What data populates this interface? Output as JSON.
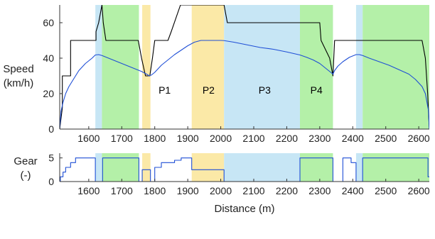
{
  "chart_data": [
    {
      "type": "line",
      "ylabel_lines": [
        "Speed",
        "(km/h)"
      ],
      "xlabel": "",
      "xlim": [
        1512,
        2632
      ],
      "ylim": [
        0,
        70
      ],
      "x_ticks": [
        1600,
        1700,
        1800,
        1900,
        2000,
        2100,
        2200,
        2300,
        2400,
        2500,
        2600
      ],
      "y_ticks": [
        0,
        20,
        40,
        60
      ],
      "grid": false,
      "legend": "none",
      "phase_bands": [
        {
          "x0": 1620,
          "x1": 1640,
          "color": "#c7e6f5"
        },
        {
          "x0": 1640,
          "x1": 1752,
          "color": "#b4f0a8"
        },
        {
          "x0": 1762,
          "x1": 1787,
          "color": "#fbe9a7"
        },
        {
          "x0": 1912,
          "x1": 2010,
          "color": "#fbe9a7"
        },
        {
          "x0": 2010,
          "x1": 2240,
          "color": "#c7e6f5"
        },
        {
          "x0": 2240,
          "x1": 2340,
          "color": "#b4f0a8"
        },
        {
          "x0": 2410,
          "x1": 2430,
          "color": "#c7e6f5"
        },
        {
          "x0": 2430,
          "x1": 2632,
          "color": "#b4f0a8"
        }
      ],
      "annotations": [
        {
          "text": "P1",
          "x": 1830,
          "y": 22
        },
        {
          "text": "P2",
          "x": 1963,
          "y": 22
        },
        {
          "text": "P3",
          "x": 2133,
          "y": 22
        },
        {
          "text": "P4",
          "x": 2290,
          "y": 22
        }
      ],
      "series": [
        {
          "color": "#000000",
          "x": [
            1512,
            1520,
            1520,
            1545,
            1545,
            1622,
            1622,
            1630,
            1640,
            1644,
            1652,
            1656,
            1750,
            1760,
            1772,
            1780,
            1785,
            1793,
            1800,
            1840,
            1850,
            1878,
            1890,
            1910,
            2010,
            2020,
            2060,
            2120,
            2180,
            2240,
            2300,
            2304,
            2330,
            2340,
            2345,
            2420,
            2430,
            2505,
            2510,
            2610,
            2620,
            2627,
            2632
          ],
          "y": [
            0,
            12,
            30,
            30,
            50,
            50,
            55,
            60,
            70,
            60,
            50,
            50,
            50,
            40,
            30,
            30,
            30,
            40,
            50,
            50,
            55,
            70,
            70,
            70,
            70,
            60,
            60,
            60,
            60,
            60,
            60,
            50,
            40,
            30,
            50,
            50,
            50,
            50,
            50,
            50,
            40,
            20,
            0
          ]
        },
        {
          "color": "#1f4fd6",
          "x": [
            1512,
            1516,
            1522,
            1530,
            1540,
            1550,
            1560,
            1570,
            1580,
            1590,
            1600,
            1610,
            1620,
            1630,
            1640,
            1660,
            1680,
            1700,
            1720,
            1740,
            1760,
            1770,
            1780,
            1782,
            1790,
            1800,
            1820,
            1840,
            1860,
            1880,
            1900,
            1920,
            1940,
            1960,
            1980,
            2000,
            2010,
            2040,
            2080,
            2120,
            2160,
            2200,
            2240,
            2260,
            2280,
            2300,
            2320,
            2340,
            2345,
            2355,
            2370,
            2390,
            2410,
            2420,
            2430,
            2450,
            2480,
            2510,
            2540,
            2570,
            2590,
            2610,
            2620,
            2625,
            2630,
            2632
          ],
          "y": [
            0,
            10,
            15,
            20,
            24,
            27,
            30,
            33,
            35,
            37,
            38.5,
            40,
            41.8,
            42,
            41.5,
            40,
            38.5,
            37,
            35.5,
            34,
            32.5,
            31.5,
            30.5,
            30,
            30.5,
            32,
            36,
            39,
            42,
            44.5,
            47,
            49,
            50,
            50,
            50,
            50,
            49.9,
            49,
            47.5,
            46,
            45,
            43.5,
            41.8,
            40.5,
            39,
            37,
            34,
            31,
            33,
            35.5,
            38,
            40.5,
            42,
            42,
            41.5,
            40,
            38,
            36,
            33.5,
            31,
            28,
            24,
            20,
            15,
            10,
            0
          ]
        }
      ]
    },
    {
      "type": "line",
      "ylabel_lines": [
        "Gear",
        "(-)"
      ],
      "xlabel": "Distance (m)",
      "xlim": [
        1512,
        2632
      ],
      "ylim": [
        0,
        6
      ],
      "x_ticks": [
        1600,
        1700,
        1800,
        1900,
        2000,
        2100,
        2200,
        2300,
        2400,
        2500,
        2600
      ],
      "y_ticks": [
        0,
        5
      ],
      "grid": false,
      "legend": "none",
      "phase_bands": [
        {
          "x0": 1620,
          "x1": 1640,
          "color": "#c7e6f5"
        },
        {
          "x0": 1640,
          "x1": 1752,
          "color": "#b4f0a8"
        },
        {
          "x0": 1762,
          "x1": 1787,
          "color": "#fbe9a7"
        },
        {
          "x0": 1912,
          "x1": 2010,
          "color": "#fbe9a7"
        },
        {
          "x0": 2010,
          "x1": 2240,
          "color": "#c7e6f5"
        },
        {
          "x0": 2240,
          "x1": 2340,
          "color": "#b4f0a8"
        },
        {
          "x0": 2410,
          "x1": 2430,
          "color": "#c7e6f5"
        },
        {
          "x0": 2430,
          "x1": 2632,
          "color": "#b4f0a8"
        }
      ],
      "series": [
        {
          "color": "#1f4fd6",
          "x": [
            1512,
            1514,
            1514,
            1522,
            1522,
            1530,
            1530,
            1545,
            1545,
            1560,
            1560,
            1620,
            1620,
            1642,
            1642,
            1752,
            1752,
            1762,
            1762,
            1787,
            1787,
            1800,
            1800,
            1820,
            1820,
            1860,
            1860,
            1880,
            1880,
            1912,
            1912,
            2010,
            2010,
            2240,
            2240,
            2340,
            2340,
            2370,
            2370,
            2395,
            2395,
            2410,
            2410,
            2430,
            2430,
            2628,
            2628,
            2632
          ],
          "y": [
            0,
            0,
            1,
            1,
            2,
            2,
            3,
            3,
            4,
            4,
            5,
            5,
            0,
            0,
            5,
            5,
            0,
            0,
            2.5,
            2.5,
            0,
            0,
            3,
            3,
            4,
            4,
            4.5,
            4.5,
            5,
            5,
            2.5,
            2.5,
            0,
            0,
            5,
            5,
            0,
            0,
            5,
            5,
            4,
            4,
            0,
            0,
            5,
            5,
            1,
            1
          ]
        }
      ]
    }
  ]
}
